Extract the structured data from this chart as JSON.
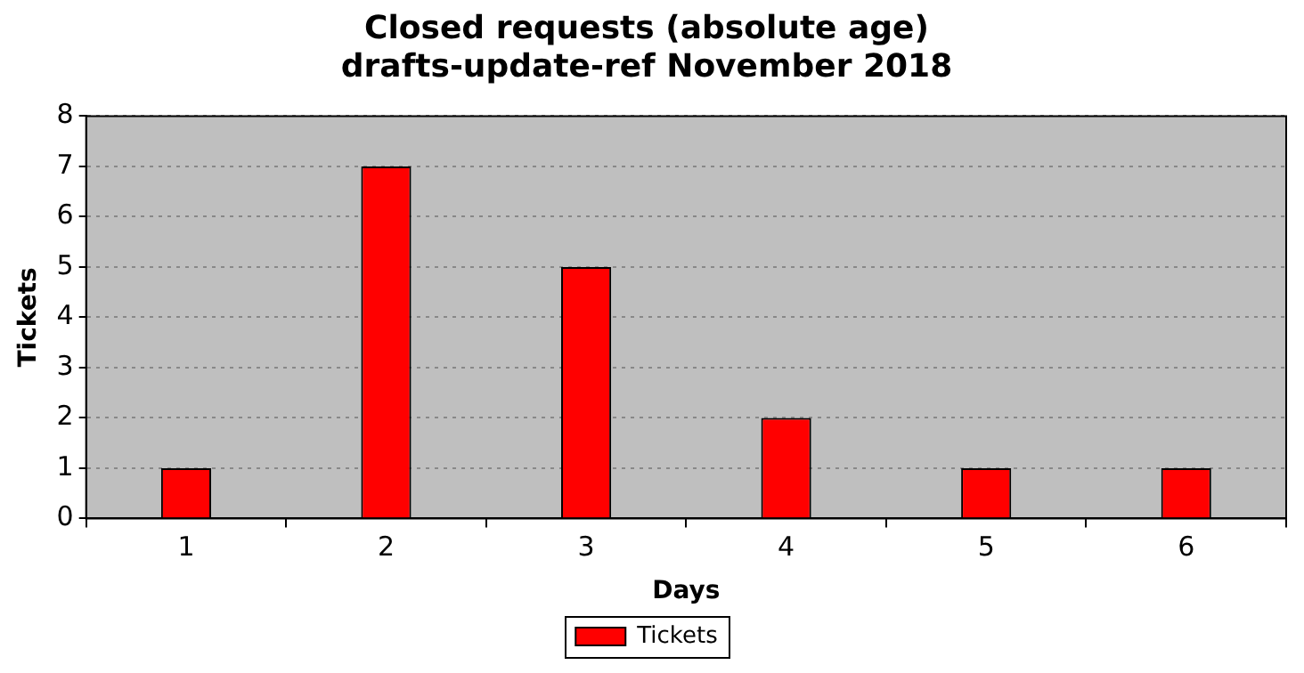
{
  "chart_data": {
    "type": "bar",
    "title": "Closed requests (absolute age)",
    "subtitle": "drafts-update-ref November 2018",
    "xlabel": "Days",
    "ylabel": "Tickets",
    "x": [
      1,
      2,
      3,
      4,
      5,
      6
    ],
    "xlim": [
      0.5,
      6.5
    ],
    "xticks": [
      1,
      2,
      3,
      4,
      5,
      6
    ],
    "ylim": [
      0,
      8
    ],
    "yticks": [
      0,
      1,
      2,
      3,
      4,
      5,
      6,
      7,
      8
    ],
    "series": [
      {
        "name": "Tickets",
        "color": "#ff0000",
        "values": [
          1,
          7,
          5,
          2,
          1,
          1
        ]
      }
    ],
    "grid": "y",
    "legend": "bottom"
  }
}
